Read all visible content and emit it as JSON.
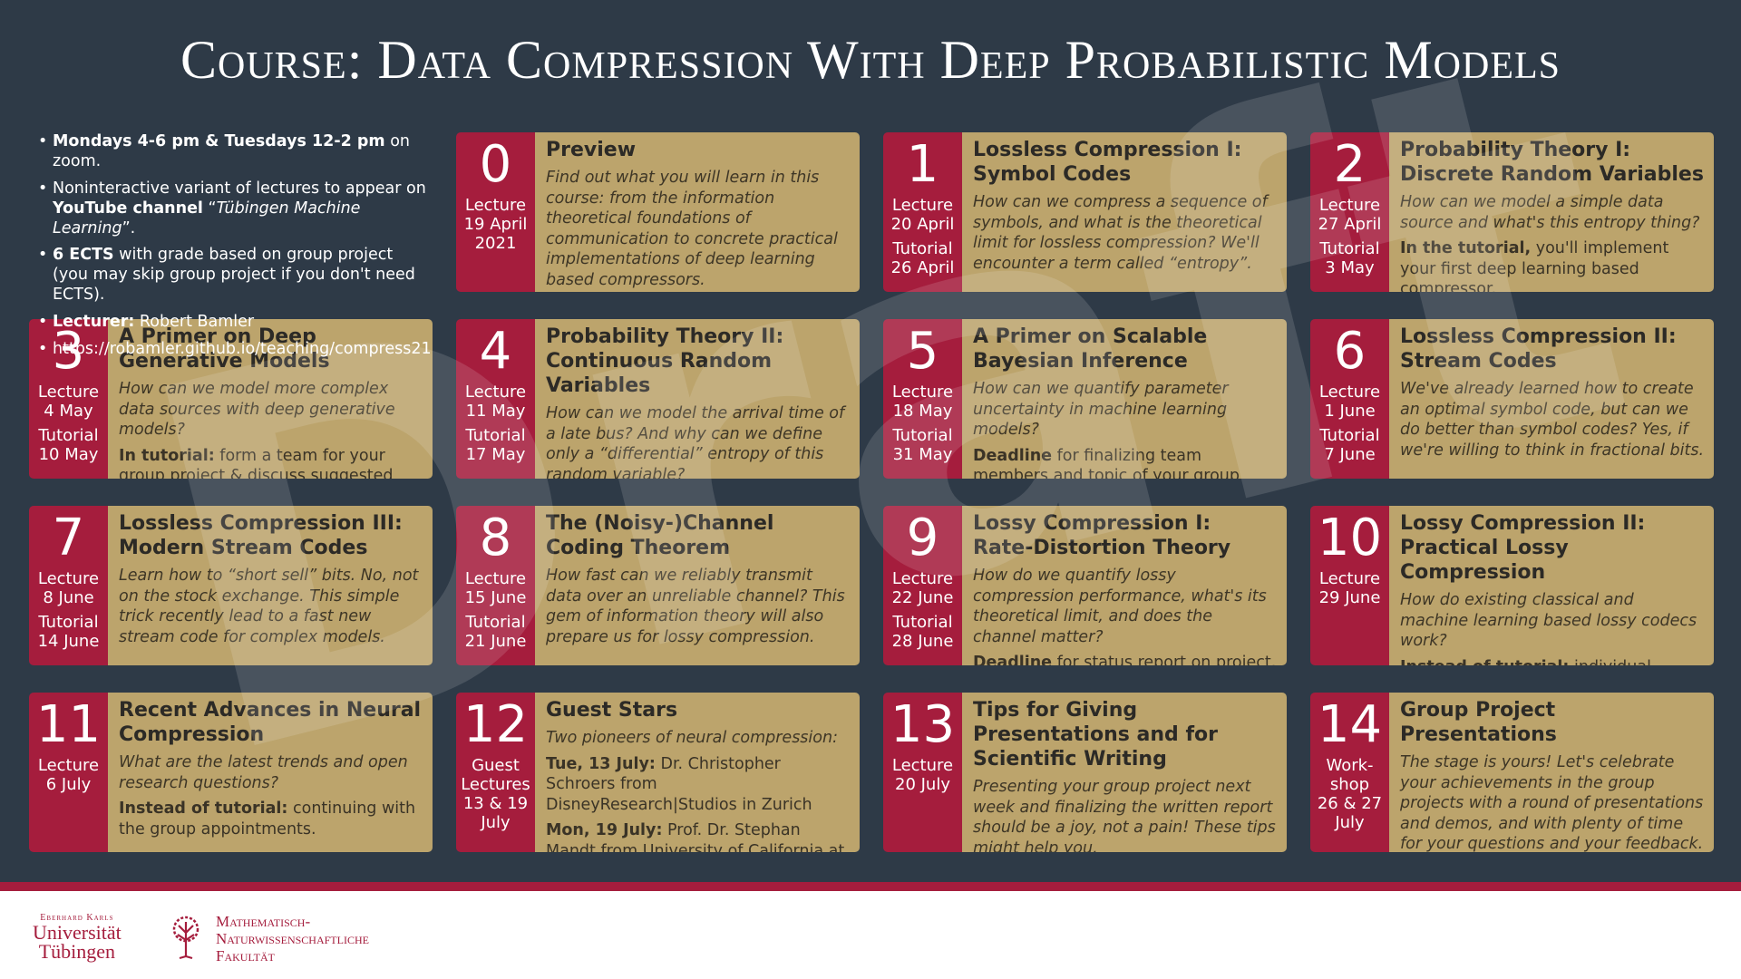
{
  "header": {
    "title": "Course: Data Compression With Deep Probabilistic Models"
  },
  "info": [
    [
      {
        "text": "Mondays 4-6 pm & Tuesdays 12-2 pm",
        "style": "bold"
      },
      {
        "text": " on zoom."
      }
    ],
    [
      {
        "text": "Noninteractive variant of lectures to appear on "
      },
      {
        "text": "YouTube channel",
        "style": "bold"
      },
      {
        "text": " “"
      },
      {
        "text": "Tübingen Machine Learning",
        "style": "italic"
      },
      {
        "text": "”."
      }
    ],
    [
      {
        "text": "6 ECTS",
        "style": "bold"
      },
      {
        "text": " with grade based on group project (you may skip group project if you don't need ECTS)."
      }
    ],
    [
      {
        "text": "Lecturer:",
        "style": "bold"
      },
      {
        "text": " Robert Bamler"
      }
    ],
    [
      {
        "text": "https://robamler.github.io/teaching/compress21"
      }
    ]
  ],
  "cards": [
    {
      "number": "0",
      "side": [
        {
          "label": "Lecture",
          "date": "19 April 2021"
        }
      ],
      "title": "Preview",
      "paragraphs": [
        {
          "text": "Find out what you will learn in this course: from the information theoretical foundations of communication to concrete practical implementations of deep learning based compressors.",
          "italic": true
        }
      ]
    },
    {
      "number": "1",
      "side": [
        {
          "label": "Lecture",
          "date": "20 April"
        },
        {
          "label": "Tutorial",
          "date": "26 April"
        }
      ],
      "title": "Lossless Compression I: Symbol Codes",
      "paragraphs": [
        {
          "text": "How can we compress a sequence of symbols, and what is the theoretical limit for lossless compression? We'll encounter a term called “entropy”.",
          "italic": true
        }
      ]
    },
    {
      "number": "2",
      "side": [
        {
          "label": "Lecture",
          "date": "27 April"
        },
        {
          "label": "Tutorial",
          "date": "3 May"
        }
      ],
      "title": "Probability Theory I: Discrete Random Variables",
      "paragraphs": [
        {
          "text": "How can we model a simple data source and what's this entropy thing?",
          "italic": true
        },
        {
          "lead": "In the tutorial,",
          "text": " you'll implement your first deep learning based compressor."
        }
      ]
    },
    {
      "number": "3",
      "side": [
        {
          "label": "Lecture",
          "date": "4 May"
        },
        {
          "label": "Tutorial",
          "date": "10 May"
        }
      ],
      "title": "A Primer on Deep Generative Models",
      "paragraphs": [
        {
          "text": "How can we model more complex data sources with deep generative models?",
          "italic": true
        },
        {
          "lead": "In tutorial:",
          "text": " form a team for your group project & discuss suggested topics."
        }
      ]
    },
    {
      "number": "4",
      "side": [
        {
          "label": "Lecture",
          "date": "11 May"
        },
        {
          "label": "Tutorial",
          "date": "17 May"
        }
      ],
      "title": "Probability Theory II: Continuous Random Variables",
      "paragraphs": [
        {
          "text": "How can we model the arrival time of a late bus? And why can we define only a “differential” entropy of this random variable?",
          "italic": true
        }
      ]
    },
    {
      "number": "5",
      "side": [
        {
          "label": "Lecture",
          "date": "18 May"
        },
        {
          "label": "Tutorial",
          "date": "31 May"
        }
      ],
      "title": "A Primer on Scalable Bayesian Inference",
      "paragraphs": [
        {
          "text": "How can we quantify parameter uncertainty in machine learning models?",
          "italic": true
        },
        {
          "lead": "Deadline",
          "text": " for finalizing team members and topic of your group project."
        }
      ]
    },
    {
      "number": "6",
      "side": [
        {
          "label": "Lecture",
          "date": "1 June"
        },
        {
          "label": "Tutorial",
          "date": "7 June"
        }
      ],
      "title": "Lossless Compression II: Stream Codes",
      "paragraphs": [
        {
          "text": "We've already learned how to create an optimal symbol code, but can we do better than symbol codes? Yes, if we're willing to think in fractional bits.",
          "italic": true
        }
      ]
    },
    {
      "number": "7",
      "side": [
        {
          "label": "Lecture",
          "date": "8 June"
        },
        {
          "label": "Tutorial",
          "date": "14 June"
        }
      ],
      "title": "Lossless Compression III: Modern Stream Codes",
      "paragraphs": [
        {
          "text": "Learn how to “short sell” bits. No, not on the stock exchange. This simple trick recently lead to a fast new stream code for complex models.",
          "italic": true
        }
      ]
    },
    {
      "number": "8",
      "side": [
        {
          "label": "Lecture",
          "date": "15 June"
        },
        {
          "label": "Tutorial",
          "date": "21 June"
        }
      ],
      "title": "The (Noisy-)Channel Coding Theorem",
      "paragraphs": [
        {
          "text": "How fast can we reliably transmit data over an unreliable channel? This gem of information theory will also prepare us for lossy compression.",
          "italic": true
        }
      ]
    },
    {
      "number": "9",
      "side": [
        {
          "label": "Lecture",
          "date": "22 June"
        },
        {
          "label": "Tutorial",
          "date": "28 June"
        }
      ],
      "title": "Lossy Compression I: Rate-Distortion Theory",
      "paragraphs": [
        {
          "text": "How do we quantify lossy compression performance, what's its theoretical limit, and does the channel matter?",
          "italic": true
        },
        {
          "lead": "Deadline",
          "text": " for status report on project."
        }
      ]
    },
    {
      "number": "10",
      "side": [
        {
          "label": "Lecture",
          "date": "29 June"
        }
      ],
      "title": "Lossy Compression II: Practical Lossy Compression",
      "paragraphs": [
        {
          "text": "How do existing classical and machine learning based lossy codecs work?",
          "italic": true
        },
        {
          "lead": "Instead of tutorial:",
          "text": " individual appointments to discuss your group projects."
        }
      ]
    },
    {
      "number": "11",
      "side": [
        {
          "label": "Lecture",
          "date": "6 July"
        }
      ],
      "title": "Recent Advances in Neural Compression",
      "paragraphs": [
        {
          "text": "What are the latest trends and open research questions?",
          "italic": true
        },
        {
          "lead": "Instead of tutorial:",
          "text": " continuing with the group appointments."
        }
      ]
    },
    {
      "number": "12",
      "side": [
        {
          "label": "Guest Lectures",
          "date": "13 & 19 July"
        }
      ],
      "title": "Guest Stars",
      "paragraphs": [
        {
          "text": "Two pioneers of neural compression:",
          "italic": true
        },
        {
          "lead": "Tue, 13 July:",
          "text": " Dr. Christopher Schroers from DisneyResearch|Studios in Zurich"
        },
        {
          "lead": "Mon, 19 July:",
          "text": " Prof. Dr. Stephan Mandt from University of California at Irvine"
        }
      ]
    },
    {
      "number": "13",
      "side": [
        {
          "label": "Lecture",
          "date": "20 July"
        }
      ],
      "title": "Tips for Giving Presentations and for Scientific Writing",
      "paragraphs": [
        {
          "text": "Presenting your group project next week and finalizing the written report should be a joy, not a pain! These tips might help you.",
          "italic": true
        }
      ]
    },
    {
      "number": "14",
      "side": [
        {
          "label": "Work-shop",
          "date": "26 & 27 July"
        }
      ],
      "title": "Group Project Presentations",
      "paragraphs": [
        {
          "text": "The stage is yours! Let's celebrate your achievements in the group projects with a round of presentations and demos, and with plenty of time for your questions and your feedback.",
          "italic": true
        }
      ]
    }
  ],
  "watermark": "Draft",
  "footer": {
    "university": [
      "Eberhard Karls",
      "Universität",
      "Tübingen"
    ],
    "faculty": [
      "Mathematisch-",
      "Naturwissenschaftliche",
      "Fakultät"
    ]
  }
}
